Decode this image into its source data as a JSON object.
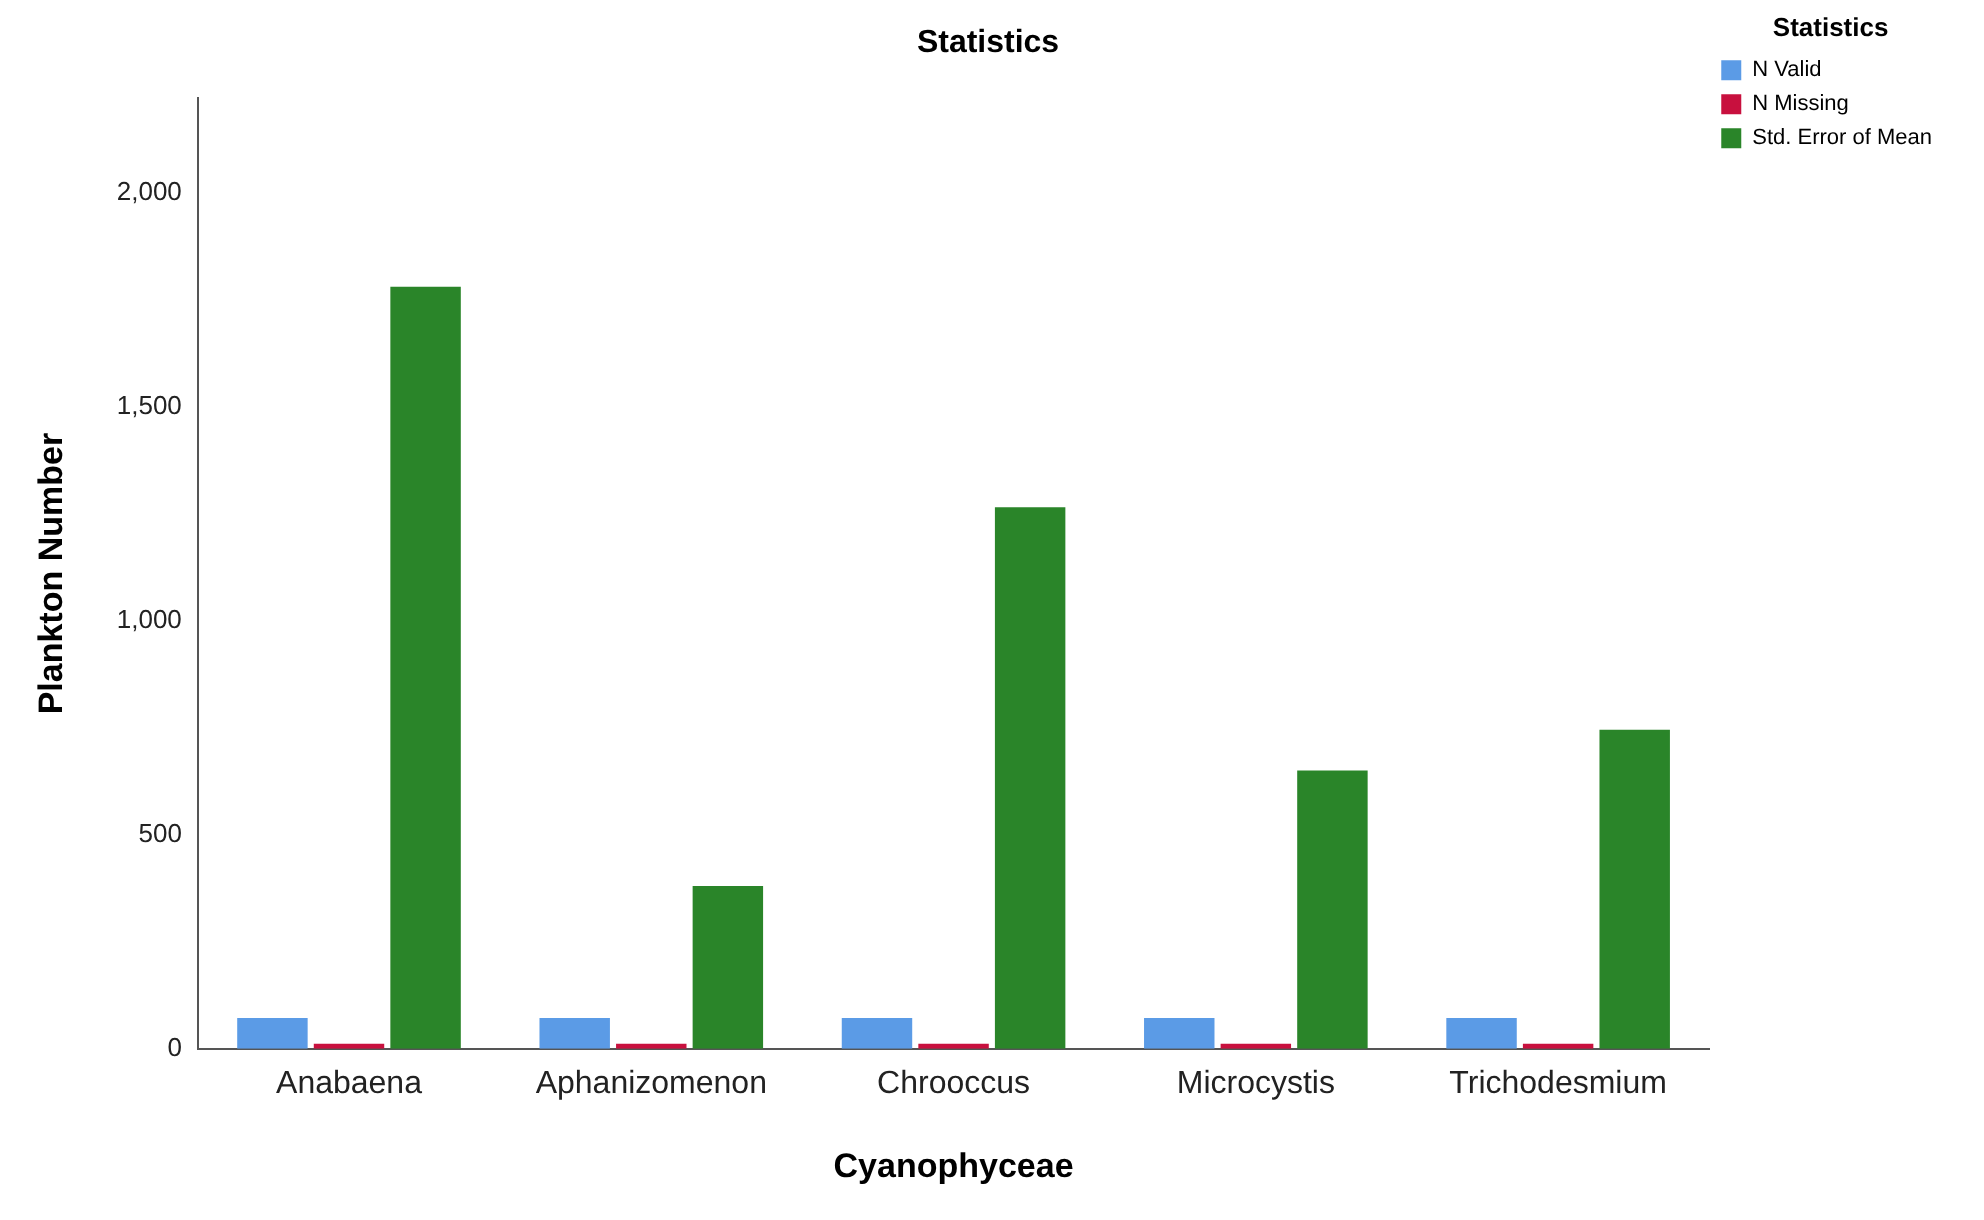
{
  "chart_data": {
    "type": "bar",
    "title": "Statistics",
    "xlabel": "Cyanophyceae",
    "ylabel": "Plankton Number",
    "legend_title": "Statistics",
    "categories": [
      "Anabaena",
      "Aphanizomenon",
      "Chrooccus",
      "Microcystis",
      "Trichodesmium"
    ],
    "series": [
      {
        "name": "N Valid",
        "color": "#5b9be6",
        "values": [
          72,
          72,
          72,
          72,
          72
        ]
      },
      {
        "name": "N Missing",
        "color": "#c8103e",
        "values": [
          12,
          12,
          12,
          12,
          12
        ]
      },
      {
        "name": "Std. Error of Mean",
        "color": "#2a8529",
        "values": [
          1780,
          380,
          1265,
          650,
          745
        ]
      }
    ],
    "ylim": [
      0,
      2220
    ],
    "yticks": [
      0,
      500,
      {
        "value": 1000,
        "label": "1,000"
      },
      {
        "value": 1500,
        "label": "1,500"
      },
      {
        "value": 2000,
        "label": "2,000"
      }
    ],
    "grid": false,
    "legend": "top right"
  }
}
